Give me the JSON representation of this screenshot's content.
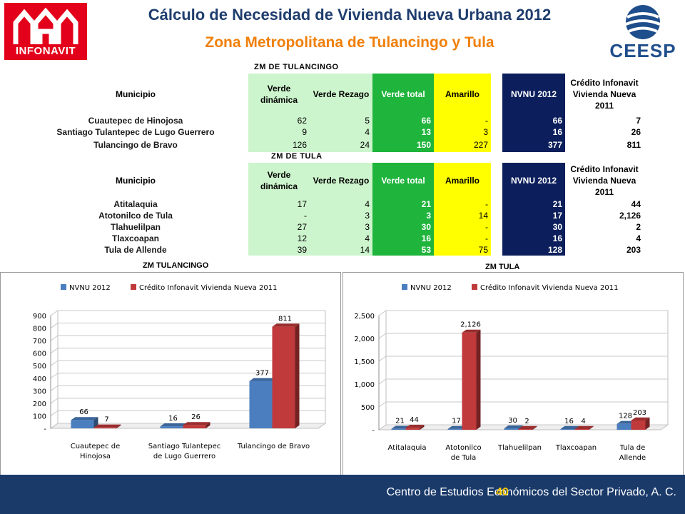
{
  "header": {
    "logo_left_text": "INFONAVIT",
    "title": "Cálculo de Necesidad de Vivienda Nueva Urbana 2012",
    "subtitle": "Zona Metropolitana de Tulancingo y Tula",
    "logo_right_text": "CEESP"
  },
  "columns": {
    "municipio": "Municipio",
    "verde_dinamica": "Verde dinámica",
    "verde_rezago": "Verde Rezago",
    "verde_total": "Verde total",
    "amarillo": "Amarillo",
    "nvnu": "NVNU 2012",
    "credito": "Crédito Infonavit Vivienda Nueva 2011"
  },
  "tables": [
    {
      "label": "ZM DE TULANCINGO",
      "rows": [
        {
          "municipio": "Cuautepec de Hinojosa",
          "verde_dinamica": "62",
          "verde_rezago": "5",
          "verde_total": "66",
          "amarillo": "-",
          "nvnu": "66",
          "credito": "7"
        },
        {
          "municipio": "Santiago Tulantepec de Lugo Guerrero",
          "verde_dinamica": "9",
          "verde_rezago": "4",
          "verde_total": "13",
          "amarillo": "3",
          "nvnu": "16",
          "credito": "26"
        },
        {
          "municipio": "Tulancingo de Bravo",
          "verde_dinamica": "126",
          "verde_rezago": "24",
          "verde_total": "150",
          "amarillo": "227",
          "nvnu": "377",
          "credito": "811"
        }
      ]
    },
    {
      "label": "ZM DE TULA",
      "rows": [
        {
          "municipio": "Atitalaquia",
          "verde_dinamica": "17",
          "verde_rezago": "4",
          "verde_total": "21",
          "amarillo": "-",
          "nvnu": "21",
          "credito": "44"
        },
        {
          "municipio": "Atotonilco de Tula",
          "verde_dinamica": "-",
          "verde_rezago": "3",
          "verde_total": "3",
          "amarillo": "14",
          "nvnu": "17",
          "credito": "2,126"
        },
        {
          "municipio": "Tlahuelilpan",
          "verde_dinamica": "27",
          "verde_rezago": "3",
          "verde_total": "30",
          "amarillo": "-",
          "nvnu": "30",
          "credito": "2"
        },
        {
          "municipio": "Tlaxcoapan",
          "verde_dinamica": "12",
          "verde_rezago": "4",
          "verde_total": "16",
          "amarillo": "-",
          "nvnu": "16",
          "credito": "4"
        },
        {
          "municipio": "Tula de Allende",
          "verde_dinamica": "39",
          "verde_rezago": "14",
          "verde_total": "53",
          "amarillo": "75",
          "nvnu": "128",
          "credito": "203"
        }
      ]
    }
  ],
  "chart_data": [
    {
      "type": "bar",
      "title": "ZM TULANCINGO",
      "categories": [
        "Cuautepec de Hinojosa",
        "Santiago Tulantepec de Lugo Guerrero",
        "Tulancingo de Bravo"
      ],
      "category_lines": [
        [
          "Cuautepec de",
          "Hinojosa"
        ],
        [
          "Santiago Tulantepec",
          "de Lugo Guerrero"
        ],
        [
          "Tulancingo de Bravo"
        ]
      ],
      "series": [
        {
          "name": "NVNU 2012",
          "color": "#4a7ebf",
          "values": [
            66,
            16,
            377
          ],
          "labels": [
            "66",
            "16",
            "377"
          ]
        },
        {
          "name": "Crédito Infonavit Vivienda Nueva 2011",
          "color": "#c0393b",
          "values": [
            7,
            26,
            811
          ],
          "labels": [
            "7",
            "26",
            "811"
          ]
        }
      ],
      "ylim": [
        0,
        900
      ],
      "yticks": [
        0,
        100,
        200,
        300,
        400,
        500,
        600,
        700,
        800,
        900
      ],
      "ytick_labels": [
        "-",
        "100",
        "200",
        "300",
        "400",
        "500",
        "600",
        "700",
        "800",
        "900"
      ],
      "legend": "top",
      "grid": true
    },
    {
      "type": "bar",
      "title": "ZM TULA",
      "categories": [
        "Atitalaquia",
        "Atotonilco de Tula",
        "Tlahuelilpan",
        "Tlaxcoapan",
        "Tula de Allende"
      ],
      "category_lines": [
        [
          "Atitalaquia"
        ],
        [
          "Atotonilco",
          "de Tula"
        ],
        [
          "Tlahuelilpan"
        ],
        [
          "Tlaxcoapan"
        ],
        [
          "Tula de",
          "Allende"
        ]
      ],
      "series": [
        {
          "name": "NVNU 2012",
          "color": "#4a7ebf",
          "values": [
            21,
            17,
            30,
            16,
            128
          ],
          "labels": [
            "21",
            "17",
            "30",
            "16",
            "128"
          ]
        },
        {
          "name": "Crédito Infonavit Vivienda Nueva 2011",
          "color": "#c0393b",
          "values": [
            44,
            2126,
            2,
            4,
            203
          ],
          "labels": [
            "44",
            "2,126",
            "2",
            "4",
            "203"
          ]
        }
      ],
      "ylim": [
        0,
        2500
      ],
      "yticks": [
        0,
        500,
        1000,
        1500,
        2000,
        2500
      ],
      "ytick_labels": [
        "-",
        "500",
        "1,000",
        "1,500",
        "2,000",
        "2,500"
      ],
      "legend": "top",
      "grid": true
    }
  ],
  "footer": {
    "text": "Centro de Estudios Económicos del Sector Privado, A. C.",
    "page_number": "40"
  }
}
